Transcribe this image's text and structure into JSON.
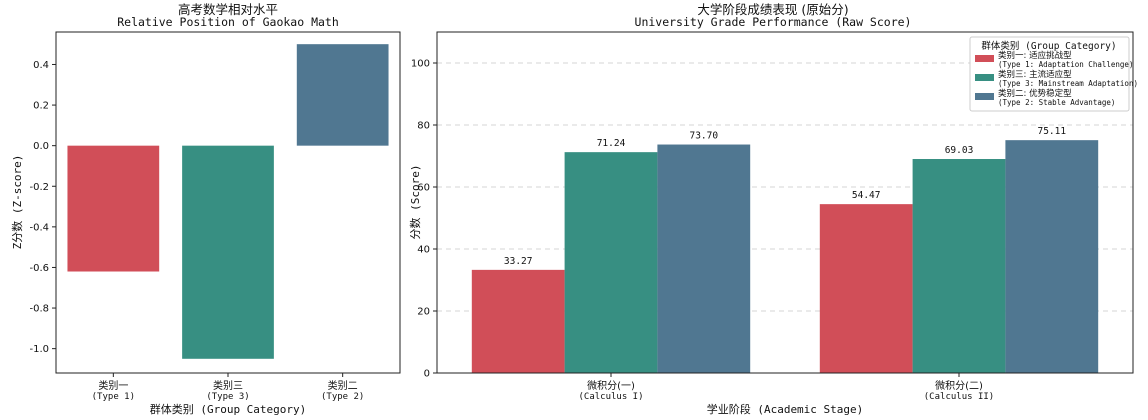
{
  "chart_data": [
    {
      "type": "bar",
      "title": "高考数学相对水平",
      "subtitle": "Relative Position of Gaokao Math",
      "ylabel": "Z分数 (Z-score)",
      "xlabel": "群体类别 (Group Category)",
      "categories": [
        {
          "label": "类别一",
          "sub": "(Type 1)"
        },
        {
          "label": "类别三",
          "sub": "(Type 3)"
        },
        {
          "label": "类别二",
          "sub": "(Type 2)"
        }
      ],
      "values": [
        -0.62,
        -1.05,
        0.5
      ],
      "colors": [
        "#d14e58",
        "#378f82",
        "#507791"
      ],
      "ylim": [
        -1.12,
        0.56
      ],
      "yticks": [
        -1.0,
        -0.8,
        -0.6,
        -0.4,
        -0.2,
        0.0,
        0.2,
        0.4
      ],
      "ytick_labels": [
        "-1.0",
        "-0.8",
        "-0.6",
        "-0.4",
        "-0.2",
        "0.0",
        "0.2",
        "0.4"
      ],
      "grid": false
    },
    {
      "type": "bar",
      "title": "大学阶段成绩表现 (原始分)",
      "subtitle": "University Grade Performance (Raw Score)",
      "ylabel": "分数 (Score)",
      "xlabel": "学业阶段 (Academic Stage)",
      "categories": [
        {
          "label": "微积分(一)",
          "sub": "(Calculus I)"
        },
        {
          "label": "微积分(二)",
          "sub": "(Calculus II)"
        }
      ],
      "series": [
        {
          "name": "类别一: 适应挑战型",
          "sub": "(Type 1: Adaptation Challenge)",
          "color": "#d14e58",
          "values": [
            33.27,
            54.47
          ],
          "labels": [
            "33.27",
            "54.47"
          ]
        },
        {
          "name": "类别三: 主流适应型",
          "sub": "(Type 3: Mainstream Adaptation)",
          "color": "#378f82",
          "values": [
            71.24,
            69.03
          ],
          "labels": [
            "71.24",
            "69.03"
          ]
        },
        {
          "name": "类别二: 优势稳定型",
          "sub": "(Type 2: Stable Advantage)",
          "color": "#507791",
          "values": [
            73.7,
            75.11
          ],
          "labels": [
            "73.70",
            "75.11"
          ]
        }
      ],
      "ylim": [
        0,
        110
      ],
      "yticks": [
        0,
        20,
        40,
        60,
        80,
        100
      ],
      "ytick_labels": [
        "0",
        "20",
        "40",
        "60",
        "80",
        "100"
      ],
      "grid": true,
      "legend": {
        "title": "群体类别 (Group Category)",
        "position": "top-right"
      }
    }
  ]
}
